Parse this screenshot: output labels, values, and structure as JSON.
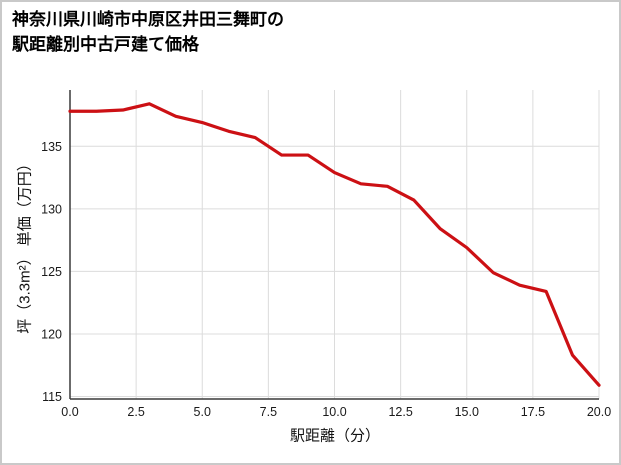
{
  "title": {
    "line1": "神奈川県川崎市中原区井田三舞町の",
    "line2": "駅距離別中古戸建て価格"
  },
  "chart_data": {
    "type": "line",
    "title": "神奈川県川崎市中原区井田三舞町の駅距離別中古戸建て価格",
    "xlabel": "駅距離（分）",
    "ylabel": "坪（3.3m²） 単価（万円）",
    "x": [
      0,
      1,
      2,
      3,
      4,
      5,
      6,
      7,
      8,
      9,
      10,
      11,
      12,
      13,
      14,
      15,
      16,
      17,
      18,
      19,
      20
    ],
    "values": [
      137.8,
      137.8,
      137.9,
      138.4,
      137.4,
      136.9,
      136.2,
      135.7,
      134.3,
      134.3,
      132.9,
      132.0,
      131.8,
      130.7,
      128.4,
      126.9,
      124.9,
      123.9,
      123.4,
      118.3,
      115.9
    ],
    "xlim": [
      0,
      20
    ],
    "ylim": [
      114.8,
      139.5
    ],
    "x_ticks": [
      0,
      2.5,
      5,
      7.5,
      10,
      12.5,
      15,
      17.5,
      20
    ],
    "x_tick_labels": [
      "0.0",
      "2.5",
      "5.0",
      "7.5",
      "10.0",
      "12.5",
      "15.0",
      "17.5",
      "20.0"
    ],
    "y_ticks": [
      115,
      120,
      125,
      130,
      135
    ],
    "y_tick_labels": [
      "115",
      "120",
      "125",
      "130",
      "135"
    ],
    "grid": true,
    "legend": false,
    "line_color": "#cc1014",
    "grid_color": "#dcdcdc",
    "axis_color": "#3a3a3a",
    "tick_color": "#1a1a1a"
  }
}
